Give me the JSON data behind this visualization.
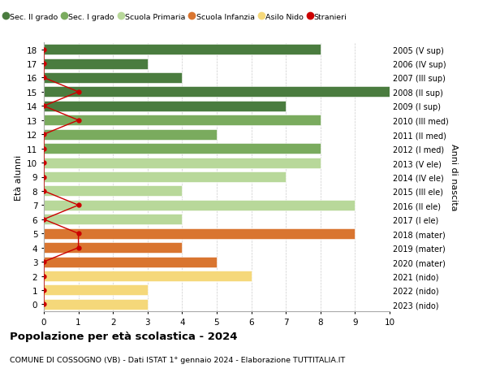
{
  "ages": [
    18,
    17,
    16,
    15,
    14,
    13,
    12,
    11,
    10,
    9,
    8,
    7,
    6,
    5,
    4,
    3,
    2,
    1,
    0
  ],
  "right_labels": [
    "2005 (V sup)",
    "2006 (IV sup)",
    "2007 (III sup)",
    "2008 (II sup)",
    "2009 (I sup)",
    "2010 (III med)",
    "2011 (II med)",
    "2012 (I med)",
    "2013 (V ele)",
    "2014 (IV ele)",
    "2015 (III ele)",
    "2016 (II ele)",
    "2017 (I ele)",
    "2018 (mater)",
    "2019 (mater)",
    "2020 (mater)",
    "2021 (nido)",
    "2022 (nido)",
    "2023 (nido)"
  ],
  "bar_values": [
    8,
    3,
    4,
    10,
    7,
    8,
    5,
    8,
    8,
    7,
    4,
    9,
    4,
    9,
    4,
    5,
    6,
    3,
    3
  ],
  "bar_colors": [
    "#4a7c3f",
    "#4a7c3f",
    "#4a7c3f",
    "#4a7c3f",
    "#4a7c3f",
    "#7aab5e",
    "#7aab5e",
    "#7aab5e",
    "#b8d89a",
    "#b8d89a",
    "#b8d89a",
    "#b8d89a",
    "#b8d89a",
    "#d97530",
    "#d97530",
    "#d97530",
    "#f5d87a",
    "#f5d87a",
    "#f5d87a"
  ],
  "stranieri_x": [
    0,
    0,
    0,
    1,
    0,
    1,
    0,
    0,
    0,
    0,
    0,
    1,
    0,
    1,
    1,
    0,
    0,
    0,
    0
  ],
  "colors": {
    "sec2": "#4a7c3f",
    "sec1": "#7aab5e",
    "primaria": "#b8d89a",
    "infanzia": "#d97530",
    "nido": "#f5d87a",
    "stranieri": "#cc0000"
  },
  "legend_labels": [
    "Sec. II grado",
    "Sec. I grado",
    "Scuola Primaria",
    "Scuola Infanzia",
    "Asilo Nido",
    "Stranieri"
  ],
  "title_bold": "Popolazione per età scolastica - 2024",
  "subtitle": "COMUNE DI COSSOGNO (VB) - Dati ISTAT 1° gennaio 2024 - Elaborazione TUTTITALIA.IT",
  "xlabel_right": "Anni di nascita",
  "ylabel": "Età alunni",
  "xlim": [
    0,
    10
  ],
  "bg_color": "#ffffff",
  "grid_color": "#cccccc"
}
